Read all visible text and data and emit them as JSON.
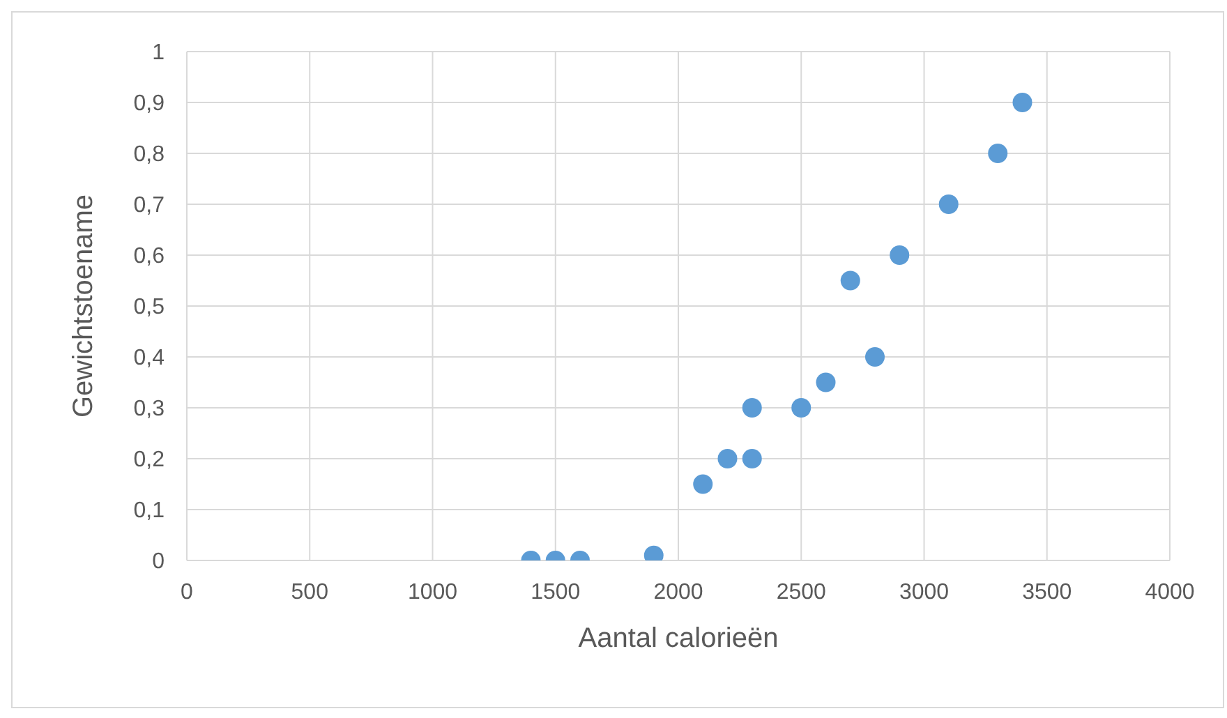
{
  "chart_data": {
    "type": "scatter",
    "xlabel": "Aantal calorieën",
    "ylabel": "Gewichtstoename",
    "x": [
      1400,
      1500,
      1600,
      1900,
      2100,
      2200,
      2300,
      2300,
      2500,
      2600,
      2700,
      2800,
      2900,
      3100,
      3300,
      3400
    ],
    "values": [
      0,
      0,
      0,
      0.01,
      0.15,
      0.2,
      0.2,
      0.3,
      0.3,
      0.35,
      0.55,
      0.4,
      0.6,
      0.7,
      0.8,
      0.9
    ],
    "color": "#5b9bd5",
    "marker": "circle",
    "grid": true,
    "xlim": [
      0,
      4000
    ],
    "xticks": [
      0,
      500,
      1000,
      1500,
      2000,
      2500,
      3000,
      3500,
      4000
    ],
    "ylim": [
      0,
      1
    ],
    "yticks": [
      0,
      {
        "value": 0.1,
        "label": "0,1"
      },
      {
        "value": 0.2,
        "label": "0,2"
      },
      {
        "value": 0.3,
        "label": "0,3"
      },
      {
        "value": 0.4,
        "label": "0,4"
      },
      {
        "value": 0.5,
        "label": "0,5"
      },
      {
        "value": 0.6,
        "label": "0,6"
      },
      {
        "value": 0.7,
        "label": "0,7"
      },
      {
        "value": 0.8,
        "label": "0,8"
      },
      {
        "value": 0.9,
        "label": "0,9"
      },
      1
    ]
  }
}
